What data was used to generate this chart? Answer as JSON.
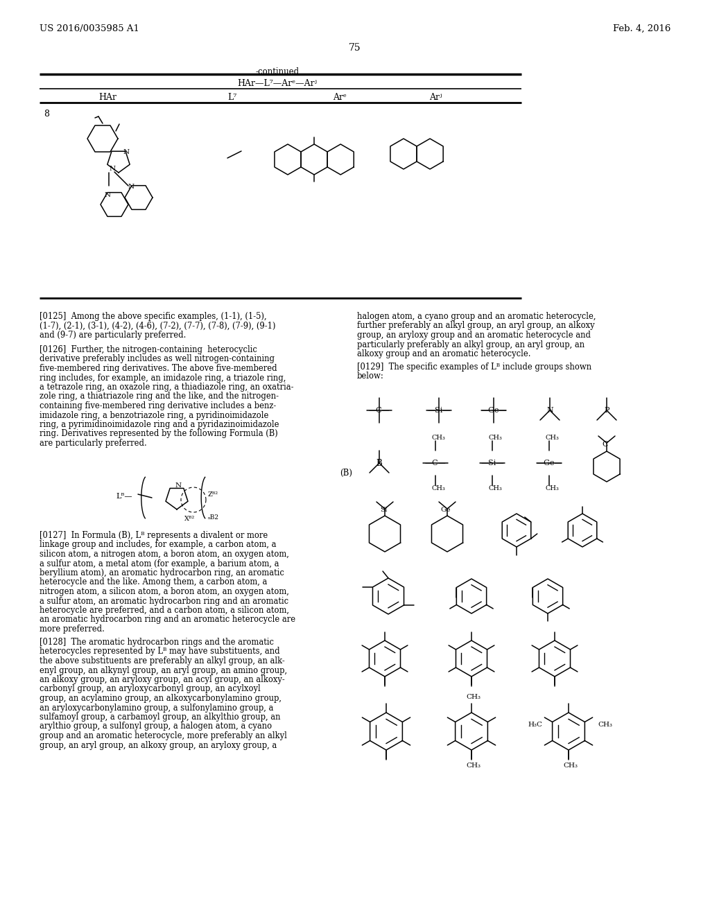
{
  "bg_color": "#ffffff",
  "header_left": "US 2016/0035985 A1",
  "header_right": "Feb. 4, 2016",
  "page_num": "75"
}
